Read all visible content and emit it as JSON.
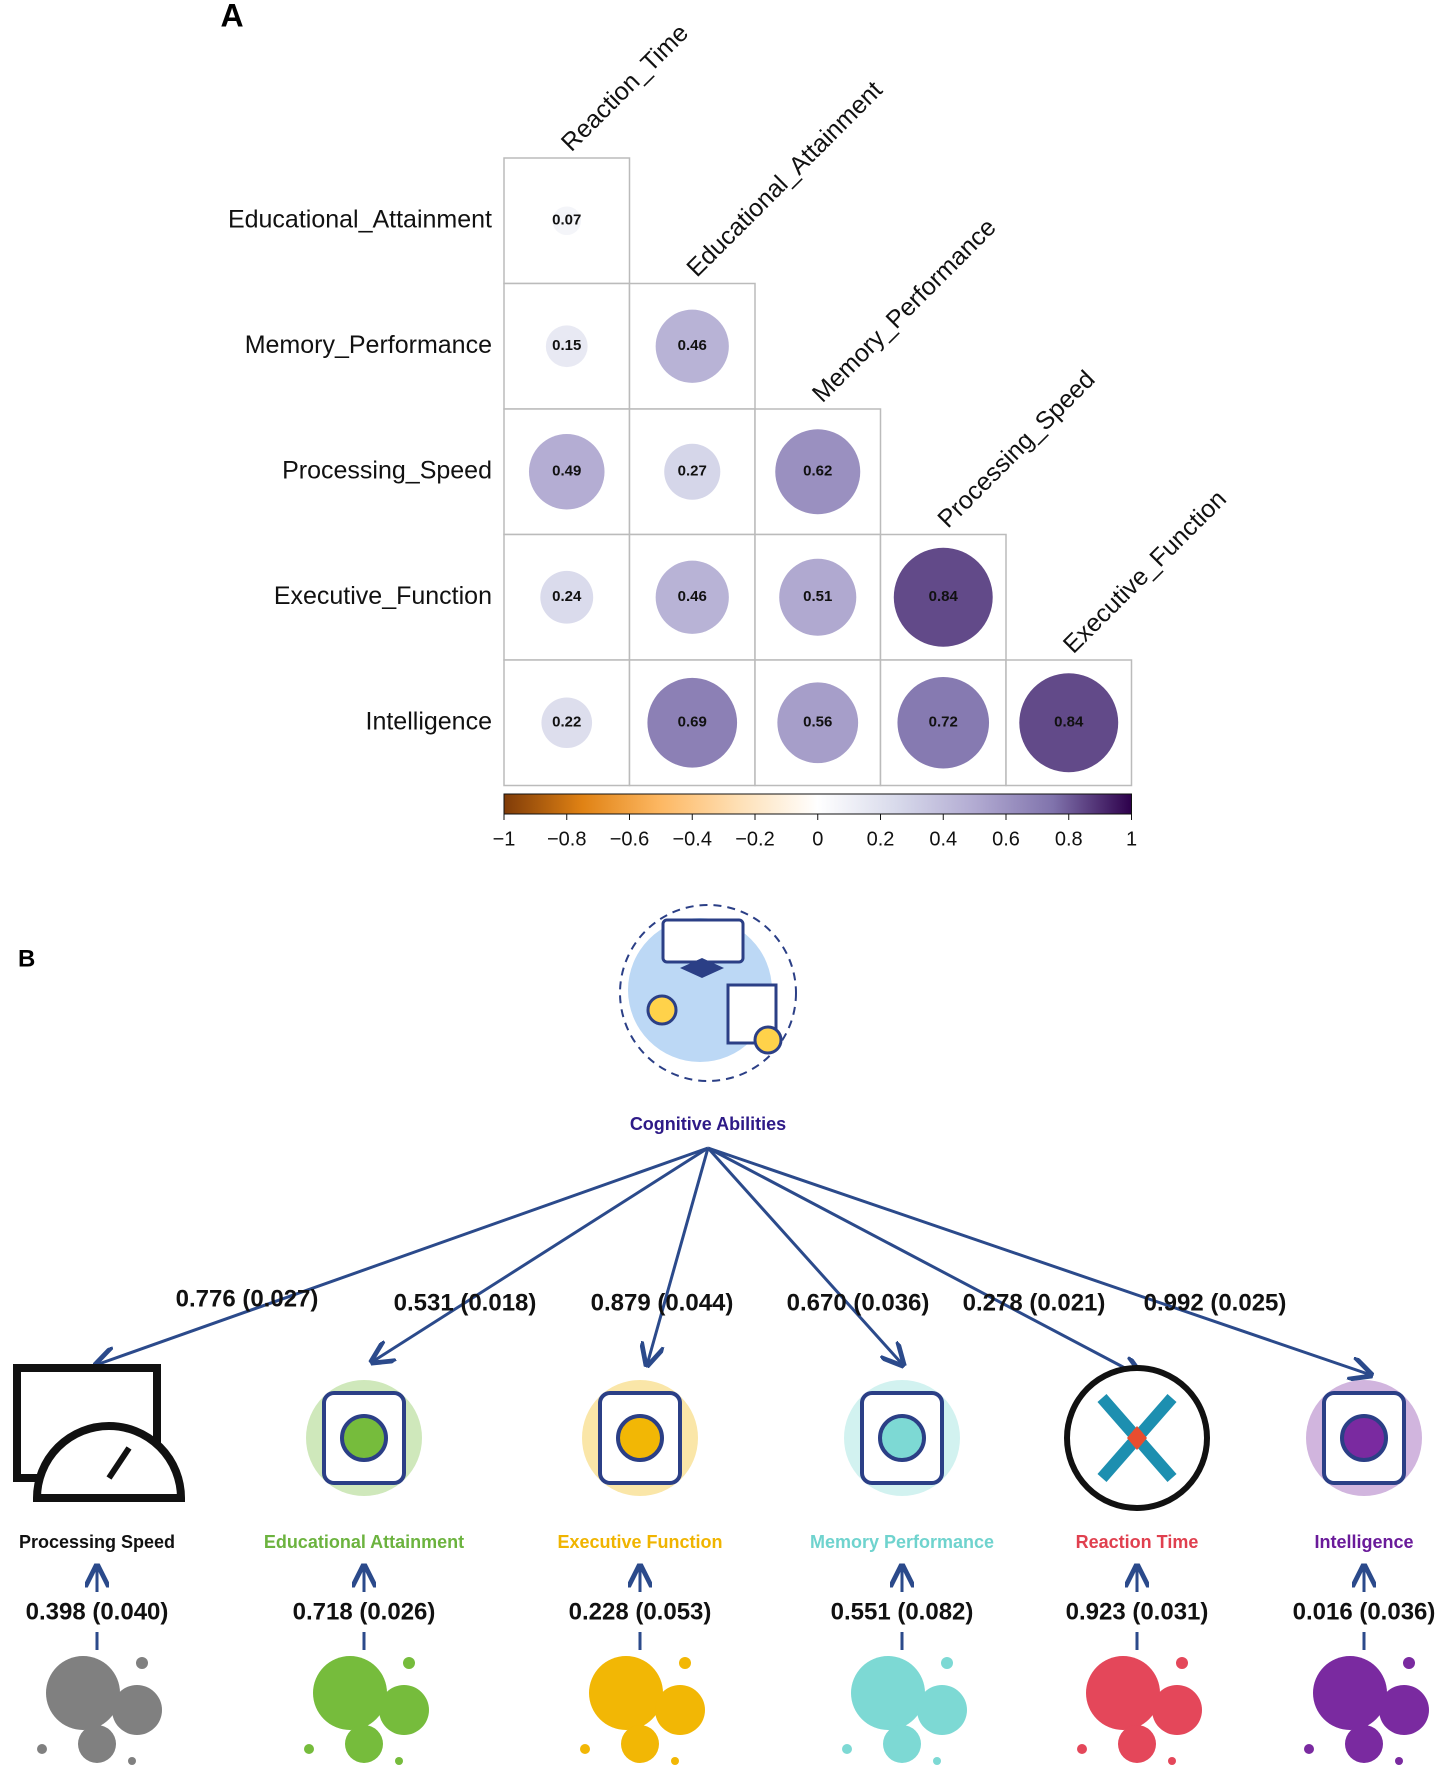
{
  "chart_data": {
    "type": "corrplot",
    "panel_label": "A",
    "columns": [
      "Reaction_Time",
      "Educational_Attainment",
      "Memory_Performance",
      "Processing_Speed",
      "Executive_Function"
    ],
    "rows": [
      "Educational_Attainment",
      "Memory_Performance",
      "Processing_Speed",
      "Executive_Function",
      "Intelligence"
    ],
    "values": [
      [
        0.07
      ],
      [
        0.15,
        0.46
      ],
      [
        0.49,
        0.27,
        0.62
      ],
      [
        0.24,
        0.46,
        0.51,
        0.84
      ],
      [
        0.22,
        0.69,
        0.56,
        0.72,
        0.84
      ]
    ],
    "colorbar": {
      "lim": [
        -1,
        1
      ],
      "ticks": [
        {
          "value": -1,
          "label": "−1"
        },
        {
          "value": -0.8,
          "label": "−0.8"
        },
        {
          "value": -0.6,
          "label": "−0.6"
        },
        {
          "value": -0.4,
          "label": "−0.4"
        },
        {
          "value": -0.2,
          "label": "−0.2"
        },
        0,
        0.2,
        0.4,
        0.6,
        0.8,
        1
      ],
      "colors": [
        "#7f3b08",
        "#e08214",
        "#fdb863",
        "#fee0b6",
        "#ffffff",
        "#d8daeb",
        "#b2abd2",
        "#8073ac",
        "#2d004b"
      ]
    }
  },
  "diagram": {
    "panel_label": "B",
    "factor": "Cognitive Abilities",
    "indicators": [
      {
        "name": "Processing Speed",
        "color": "#111111",
        "bubble": "#808080",
        "loading": "0.776 (0.027)",
        "residual": "0.398 (0.040)"
      },
      {
        "name": "Educational Attainment",
        "color": "#6cb33f",
        "bubble": "#76bc3c",
        "loading": "0.531 (0.018)",
        "residual": "0.718 (0.026)"
      },
      {
        "name": "Executive Function",
        "color": "#f0b400",
        "bubble": "#f2b705",
        "loading": "0.879 (0.044)",
        "residual": "0.228 (0.053)"
      },
      {
        "name": "Memory Performance",
        "color": "#6fd3ce",
        "bubble": "#7dd9d4",
        "loading": "0.670 (0.036)",
        "residual": "0.551 (0.082)"
      },
      {
        "name": "Reaction Time",
        "color": "#e0404f",
        "bubble": "#e4475a",
        "loading": "0.278 (0.021)",
        "residual": "0.923 (0.031)"
      },
      {
        "name": "Intelligence",
        "color": "#6a1b9a",
        "bubble": "#7a2aa0",
        "loading": "0.992 (0.025)",
        "residual": "0.016 (0.036)"
      }
    ]
  }
}
